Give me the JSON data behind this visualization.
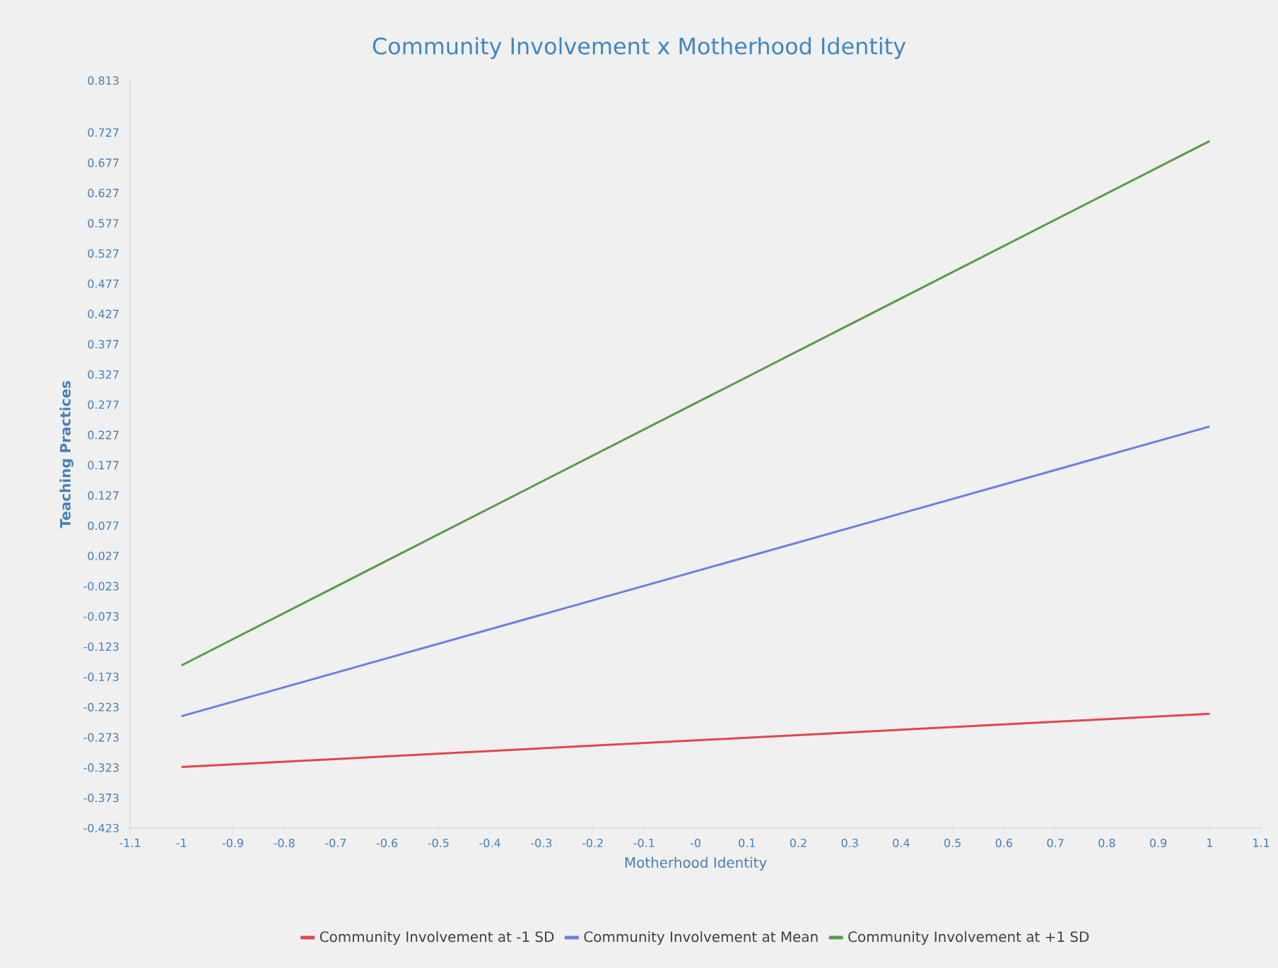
{
  "chart_data": {
    "type": "line",
    "title": "Community Involvement x Motherhood Identity",
    "xlabel": "Motherhood Identity",
    "ylabel": "Teaching Practices",
    "x": [
      -1,
      1
    ],
    "series": [
      {
        "name": "Community Involvement at -1 SD",
        "color": "#e0474c",
        "values": [
          -0.322,
          -0.234
        ]
      },
      {
        "name": "Community Involvement at Mean",
        "color": "#6b7fe0",
        "values": [
          -0.238,
          0.241
        ]
      },
      {
        "name": "Community Involvement at +1 SD",
        "color": "#5a9a4a",
        "values": [
          -0.154,
          0.713
        ]
      }
    ],
    "xlim": [
      -1.1,
      1.1
    ],
    "xticks": [
      -1.1,
      -1,
      -0.9,
      -0.8,
      -0.7,
      -0.6,
      -0.5,
      -0.4,
      -0.3,
      -0.2,
      -0.1,
      {
        "value": 0,
        "label": "-0"
      },
      0.1,
      0.2,
      0.3,
      0.4,
      0.5,
      0.6,
      0.7,
      0.8,
      0.9,
      1,
      1.1
    ],
    "ylim": [
      -0.423,
      0.813
    ],
    "yticks": [
      -0.423,
      -0.373,
      -0.323,
      -0.273,
      -0.223,
      -0.173,
      -0.123,
      -0.073,
      -0.023,
      0.027,
      0.077,
      0.127,
      0.177,
      0.227,
      0.277,
      0.327,
      0.377,
      0.427,
      0.477,
      0.527,
      0.577,
      0.627,
      0.677,
      0.727,
      {
        "value": 0.777,
        "label": null
      },
      0.813
    ],
    "grid": false,
    "legend": "bottom",
    "marker": "none",
    "line_style": "solid"
  }
}
